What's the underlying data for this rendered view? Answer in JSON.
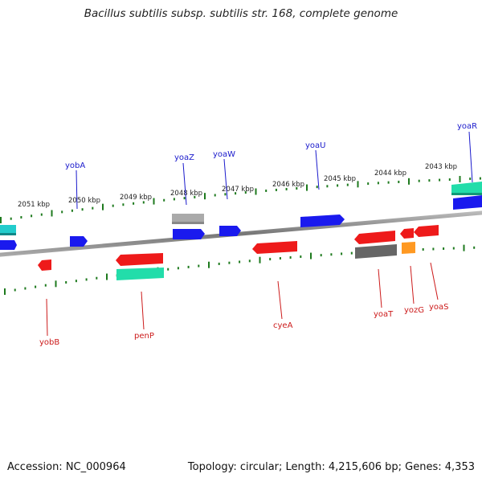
{
  "title": "Bacillus subtilis subsp. subtilis str. 168, complete genome",
  "footer": {
    "accession": "Accession: NC_000964",
    "summary": "Topology: circular; Length: 4,215,606 bp; Genes: 4,353"
  },
  "colors": {
    "backbone": "#888888",
    "tick": "#1e7a1e",
    "forward_cds": "#1a1aee",
    "reverse_cds": "#ee1a1a",
    "rna": "#22ddaa",
    "cyan_feature": "#22cccc",
    "pseudo_gray": "#666666",
    "light_gray": "#aaaaaa",
    "orange_feature": "#ff9922",
    "forward_label": "#1a1acc",
    "reverse_label": "#cc1a1a"
  },
  "scale_labels": [
    "2051 kbp",
    "2050 kbp",
    "2049 kbp",
    "2048 kbp",
    "2047 kbp",
    "2046 kbp",
    "2045 kbp",
    "2044 kbp",
    "2043 kbp"
  ],
  "forward_gene_labels": [
    "yobA",
    "yoaZ",
    "yoaW",
    "yoaU",
    "yoaR"
  ],
  "reverse_gene_labels": [
    "yobB",
    "penP",
    "cyeA",
    "yoaT",
    "yozG",
    "yoaS"
  ]
}
